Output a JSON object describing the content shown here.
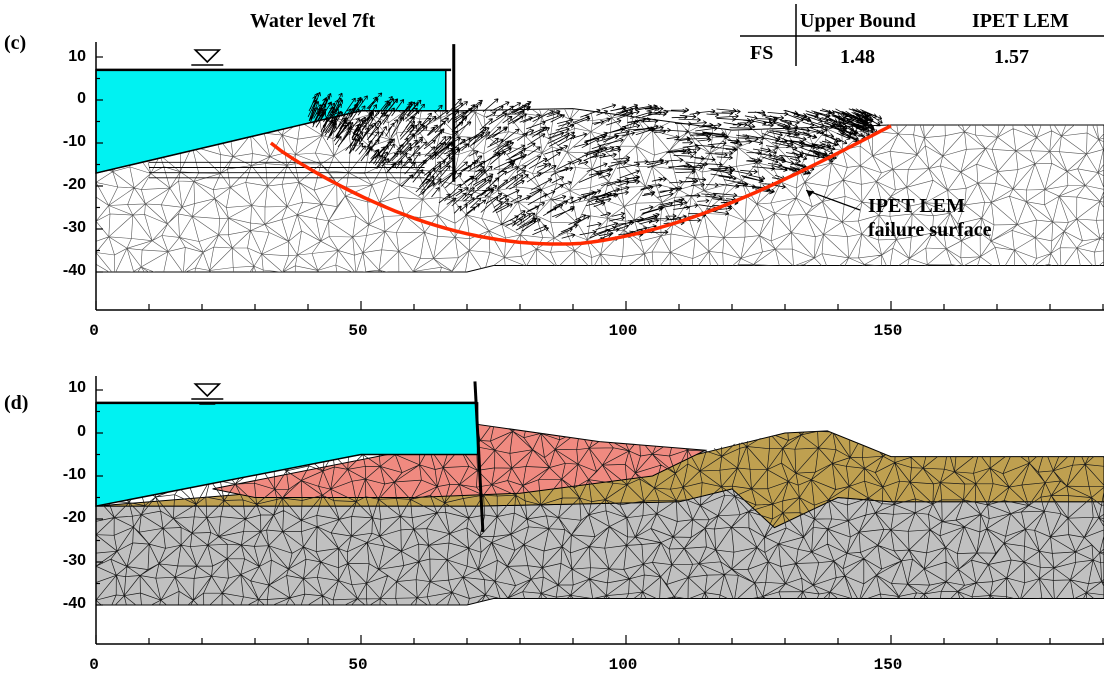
{
  "panel_c": {
    "label": "(c)",
    "water_label": "Water level 7ft",
    "annotation": [
      "IPET LEM",
      "failure surface"
    ],
    "table": {
      "col_headers": [
        "Upper Bound",
        "IPET LEM"
      ],
      "row_label": "FS",
      "values": [
        "1.48",
        "1.57"
      ]
    }
  },
  "panel_d": {
    "label": "(d)"
  },
  "axes": {
    "x_ticks": [
      "0",
      "50",
      "100",
      "150"
    ],
    "y_ticks": [
      "10",
      "0",
      "-10",
      "-20",
      "-30",
      "-40"
    ]
  },
  "colors": {
    "water": "#00f2f2",
    "failure_surface": "#ff2a00",
    "clay_pink": "#f08a80",
    "sand_tan": "#bfa050",
    "base_gray": "#c0c0c0",
    "mesh": "#222222"
  }
}
